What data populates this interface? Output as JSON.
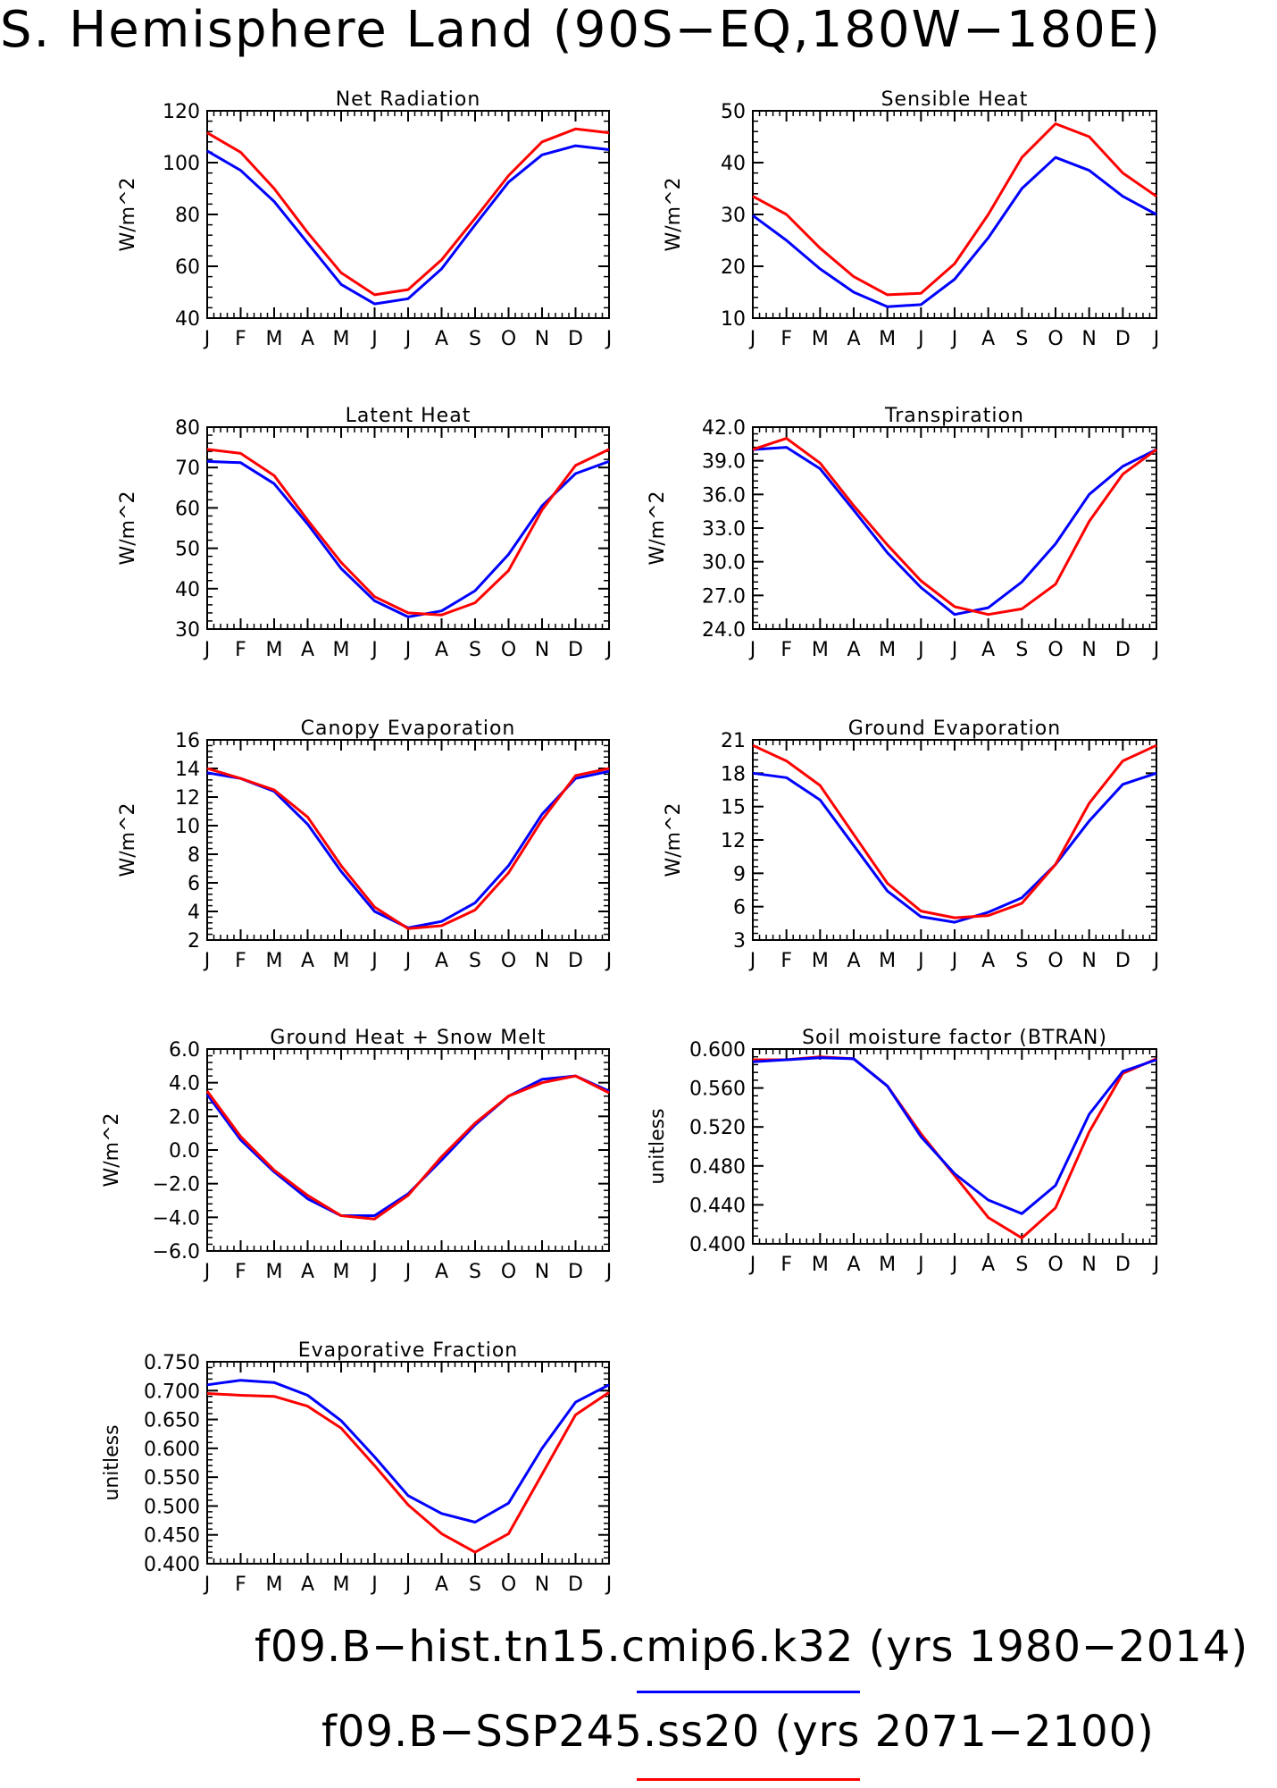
{
  "title": "S. Hemisphere Land (90S−EQ,180W−180E)",
  "colors": {
    "series1": "#0000ff",
    "series2": "#ff0000",
    "axis": "#000000"
  },
  "legend": [
    {
      "text": "f09.B−hist.tn15.cmip6.k32 (yrs 1980−2014)",
      "color": "#0000ff"
    },
    {
      "text": "f09.B−SSP245.ss20 (yrs 2071−2100)",
      "color": "#ff0000"
    }
  ],
  "chart_data": [
    {
      "type": "line",
      "title": "Net Radiation",
      "ylabel": "W/m^2",
      "categories": [
        "J",
        "F",
        "M",
        "A",
        "M",
        "J",
        "J",
        "A",
        "S",
        "O",
        "N",
        "D",
        "J"
      ],
      "ylim": [
        40,
        120
      ],
      "yticks": [
        "40",
        "60",
        "80",
        "100",
        "120"
      ],
      "series": [
        {
          "color": "#0000ff",
          "values": [
            104.5,
            97,
            85,
            69,
            53,
            45.5,
            47.5,
            59,
            76,
            92.5,
            103,
            106.5,
            105
          ]
        },
        {
          "color": "#ff0000",
          "values": [
            111.5,
            104,
            90,
            73,
            57.5,
            49,
            51,
            62.5,
            78.5,
            95,
            108,
            113,
            111.5
          ]
        }
      ]
    },
    {
      "type": "line",
      "title": "Sensible Heat",
      "ylabel": "W/m^2",
      "categories": [
        "J",
        "F",
        "M",
        "A",
        "M",
        "J",
        "J",
        "A",
        "S",
        "O",
        "N",
        "D",
        "J"
      ],
      "ylim": [
        10,
        50
      ],
      "yticks": [
        "10",
        "20",
        "30",
        "40",
        "50"
      ],
      "series": [
        {
          "color": "#0000ff",
          "values": [
            29.8,
            25,
            19.5,
            15,
            12.2,
            12.6,
            17.5,
            25.5,
            35,
            41,
            38.5,
            33.5,
            30
          ]
        },
        {
          "color": "#ff0000",
          "values": [
            33.5,
            30,
            23.5,
            18,
            14.5,
            14.8,
            20.5,
            30,
            41,
            47.5,
            45,
            38,
            33.5
          ]
        }
      ]
    },
    {
      "type": "line",
      "title": "Latent Heat",
      "ylabel": "W/m^2",
      "categories": [
        "J",
        "F",
        "M",
        "A",
        "M",
        "J",
        "J",
        "A",
        "S",
        "O",
        "N",
        "D",
        "J"
      ],
      "ylim": [
        30,
        80
      ],
      "yticks": [
        "30",
        "40",
        "50",
        "60",
        "70",
        "80"
      ],
      "series": [
        {
          "color": "#0000ff",
          "values": [
            71.5,
            71.2,
            66,
            56,
            45,
            37,
            33,
            34.5,
            39.5,
            48.5,
            60.5,
            68.5,
            71.5
          ]
        },
        {
          "color": "#ff0000",
          "values": [
            74.5,
            73.5,
            68,
            57,
            46.5,
            38,
            34,
            33.5,
            36.5,
            44.5,
            59.5,
            70.5,
            74.5
          ]
        }
      ]
    },
    {
      "type": "line",
      "title": "Transpiration",
      "ylabel": "W/m^2",
      "categories": [
        "J",
        "F",
        "M",
        "A",
        "M",
        "J",
        "J",
        "A",
        "S",
        "O",
        "N",
        "D",
        "J"
      ],
      "ylim": [
        24,
        42
      ],
      "yticks": [
        "24.0",
        "27.0",
        "30.0",
        "33.0",
        "36.0",
        "39.0",
        "42.0"
      ],
      "series": [
        {
          "color": "#0000ff",
          "values": [
            40.0,
            40.2,
            38.3,
            34.6,
            30.8,
            27.7,
            25.3,
            25.9,
            28.2,
            31.6,
            36.0,
            38.5,
            40.0
          ]
        },
        {
          "color": "#ff0000",
          "values": [
            40.0,
            41.0,
            38.8,
            35.0,
            31.5,
            28.3,
            26.0,
            25.3,
            25.8,
            28.0,
            33.6,
            37.8,
            40.0
          ]
        }
      ]
    },
    {
      "type": "line",
      "title": "Canopy Evaporation",
      "ylabel": "W/m^2",
      "categories": [
        "J",
        "F",
        "M",
        "A",
        "M",
        "J",
        "J",
        "A",
        "S",
        "O",
        "N",
        "D",
        "J"
      ],
      "ylim": [
        2,
        16
      ],
      "yticks": [
        "2",
        "4",
        "6",
        "8",
        "10",
        "12",
        "14",
        "16"
      ],
      "series": [
        {
          "color": "#0000ff",
          "values": [
            13.7,
            13.3,
            12.4,
            10.1,
            6.8,
            4.0,
            2.85,
            3.3,
            4.6,
            7.2,
            10.8,
            13.3,
            13.8
          ]
        },
        {
          "color": "#ff0000",
          "values": [
            14.0,
            13.3,
            12.5,
            10.6,
            7.2,
            4.3,
            2.8,
            3.0,
            4.1,
            6.7,
            10.4,
            13.5,
            14.0
          ]
        }
      ]
    },
    {
      "type": "line",
      "title": "Ground Evaporation",
      "ylabel": "W/m^2",
      "categories": [
        "J",
        "F",
        "M",
        "A",
        "M",
        "J",
        "J",
        "A",
        "S",
        "O",
        "N",
        "D",
        "J"
      ],
      "ylim": [
        3,
        21
      ],
      "yticks": [
        "3",
        "6",
        "9",
        "12",
        "15",
        "18",
        "21"
      ],
      "series": [
        {
          "color": "#0000ff",
          "values": [
            18.0,
            17.6,
            15.6,
            11.5,
            7.4,
            5.1,
            4.6,
            5.5,
            6.8,
            9.8,
            13.7,
            17.0,
            18.0
          ]
        },
        {
          "color": "#ff0000",
          "values": [
            20.5,
            19.1,
            16.9,
            12.5,
            8.1,
            5.6,
            5.0,
            5.2,
            6.3,
            9.8,
            15.3,
            19.1,
            20.5
          ]
        }
      ]
    },
    {
      "type": "line",
      "title": "Ground Heat + Snow Melt",
      "ylabel": "W/m^2",
      "categories": [
        "J",
        "F",
        "M",
        "A",
        "M",
        "J",
        "J",
        "A",
        "S",
        "O",
        "N",
        "D",
        "J"
      ],
      "ylim": [
        -6,
        6
      ],
      "yticks": [
        "−6.0",
        "−4.0",
        "−2.0",
        "0.0",
        "2.0",
        "4.0",
        "6.0"
      ],
      "series": [
        {
          "color": "#0000ff",
          "values": [
            3.3,
            0.6,
            -1.3,
            -2.9,
            -3.9,
            -3.9,
            -2.6,
            -0.6,
            1.5,
            3.2,
            4.2,
            4.4,
            3.5
          ]
        },
        {
          "color": "#ff0000",
          "values": [
            3.5,
            0.8,
            -1.2,
            -2.7,
            -3.9,
            -4.1,
            -2.7,
            -0.4,
            1.6,
            3.2,
            4.0,
            4.4,
            3.4
          ]
        }
      ]
    },
    {
      "type": "line",
      "title": "Soil moisture factor (BTRAN)",
      "ylabel": "unitless",
      "categories": [
        "J",
        "F",
        "M",
        "A",
        "M",
        "J",
        "J",
        "A",
        "S",
        "O",
        "N",
        "D",
        "J"
      ],
      "ylim": [
        0.4,
        0.6
      ],
      "yticks": [
        "0.400",
        "0.440",
        "0.480",
        "0.520",
        "0.560",
        "0.600"
      ],
      "series": [
        {
          "color": "#ff0000",
          "values": [
            0.589,
            0.589,
            0.592,
            0.59,
            0.562,
            0.513,
            0.47,
            0.427,
            0.406,
            0.437,
            0.515,
            0.575,
            0.59
          ]
        },
        {
          "color": "#0000ff",
          "values": [
            0.587,
            0.589,
            0.591,
            0.59,
            0.562,
            0.51,
            0.472,
            0.445,
            0.431,
            0.46,
            0.533,
            0.577,
            0.589
          ]
        }
      ]
    },
    {
      "type": "line",
      "title": "Evaporative Fraction",
      "ylabel": "unitless",
      "categories": [
        "J",
        "F",
        "M",
        "A",
        "M",
        "J",
        "J",
        "A",
        "S",
        "O",
        "N",
        "D",
        "J"
      ],
      "ylim": [
        0.4,
        0.75
      ],
      "yticks": [
        "0.400",
        "0.450",
        "0.500",
        "0.550",
        "0.600",
        "0.650",
        "0.700",
        "0.750"
      ],
      "series": [
        {
          "color": "#0000ff",
          "values": [
            0.71,
            0.718,
            0.714,
            0.692,
            0.648,
            0.585,
            0.518,
            0.487,
            0.472,
            0.505,
            0.6,
            0.68,
            0.71
          ]
        },
        {
          "color": "#ff0000",
          "values": [
            0.695,
            0.692,
            0.69,
            0.673,
            0.635,
            0.57,
            0.502,
            0.452,
            0.42,
            0.452,
            0.555,
            0.658,
            0.697
          ]
        }
      ]
    }
  ]
}
